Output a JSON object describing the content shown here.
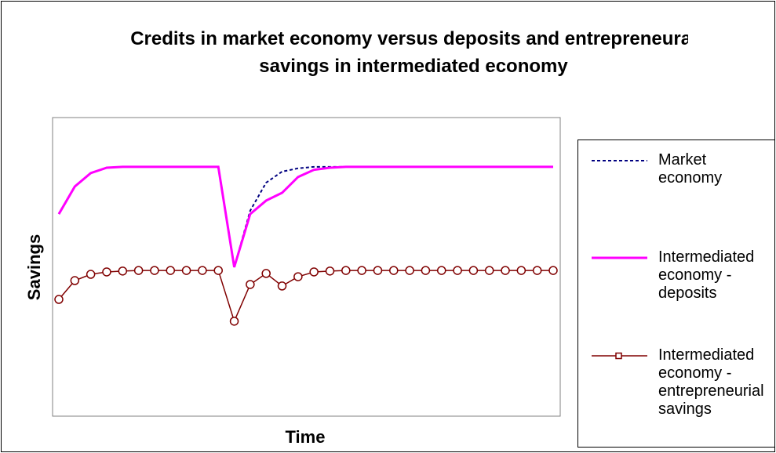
{
  "chart_data": {
    "type": "line",
    "title": "Credits in market economy versus deposits and entrepreneural savings in intermediated economy",
    "x_label": "Time",
    "y_label": "Savings",
    "categories": [
      null,
      null,
      null,
      null,
      null,
      null,
      null,
      null,
      null,
      null,
      null,
      null,
      null,
      null,
      null,
      null,
      null,
      null,
      null,
      null,
      null,
      null,
      null,
      null,
      null,
      null,
      null,
      null,
      null,
      null,
      null,
      null
    ],
    "ylim": [
      0,
      100
    ],
    "series": [
      {
        "name": "Market economy",
        "color": "#000080",
        "dash": "dotted",
        "values": [
          67.7,
          76.9,
          81.4,
          83.2,
          83.5,
          83.5,
          83.5,
          83.5,
          83.5,
          83.5,
          83.5,
          49.9,
          68.8,
          78.2,
          81.9,
          83.0,
          83.5,
          83.5,
          83.5,
          83.5,
          83.5,
          83.5,
          83.5,
          83.5,
          83.5,
          83.5,
          83.5,
          83.5,
          83.5,
          83.5,
          83.5,
          83.5
        ]
      },
      {
        "name": "Intermediated economy - deposits",
        "color": "#ff00ff",
        "dash": "solid",
        "values": [
          67.7,
          76.9,
          81.4,
          83.2,
          83.5,
          83.5,
          83.5,
          83.5,
          83.5,
          83.5,
          83.5,
          49.9,
          67.7,
          72.2,
          74.8,
          80.1,
          82.5,
          83.2,
          83.5,
          83.5,
          83.5,
          83.5,
          83.5,
          83.5,
          83.5,
          83.5,
          83.5,
          83.5,
          83.5,
          83.5,
          83.5,
          83.5
        ]
      },
      {
        "name": "Intermediated economy - entrepreneurial savings",
        "color": "#800000",
        "dash": "solid",
        "marker": "circle",
        "values": [
          39.1,
          45.4,
          47.5,
          48.3,
          48.6,
          48.8,
          48.8,
          48.8,
          48.8,
          48.8,
          48.8,
          31.8,
          44.1,
          47.8,
          43.6,
          46.7,
          48.3,
          48.6,
          48.8,
          48.8,
          48.8,
          48.8,
          48.8,
          48.8,
          48.8,
          48.8,
          48.8,
          48.8,
          48.8,
          48.8,
          48.8,
          48.8
        ]
      }
    ]
  }
}
